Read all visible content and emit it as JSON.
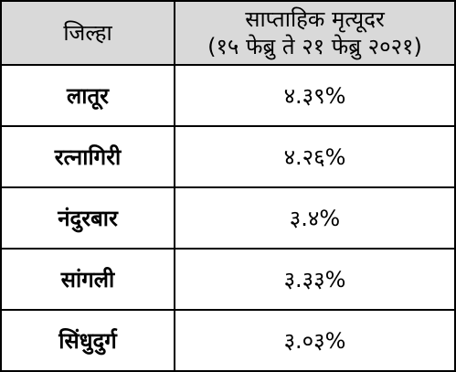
{
  "table": {
    "header": {
      "district": "जिल्हा",
      "rate_title": "साप्ताहिक मृत्यूदर",
      "rate_period": "(१५ फेब्रु ते २१ फेब्रु २०२१)"
    },
    "rows": [
      [
        "लातूर",
        "४.३९%"
      ],
      [
        "रत्नागिरी",
        "४.२६%"
      ],
      [
        "नंदुरबार",
        "३.४%"
      ],
      [
        "सांगली",
        "३.३३%"
      ],
      [
        "सिंधुदुर्ग",
        "३.०३%"
      ]
    ]
  }
}
